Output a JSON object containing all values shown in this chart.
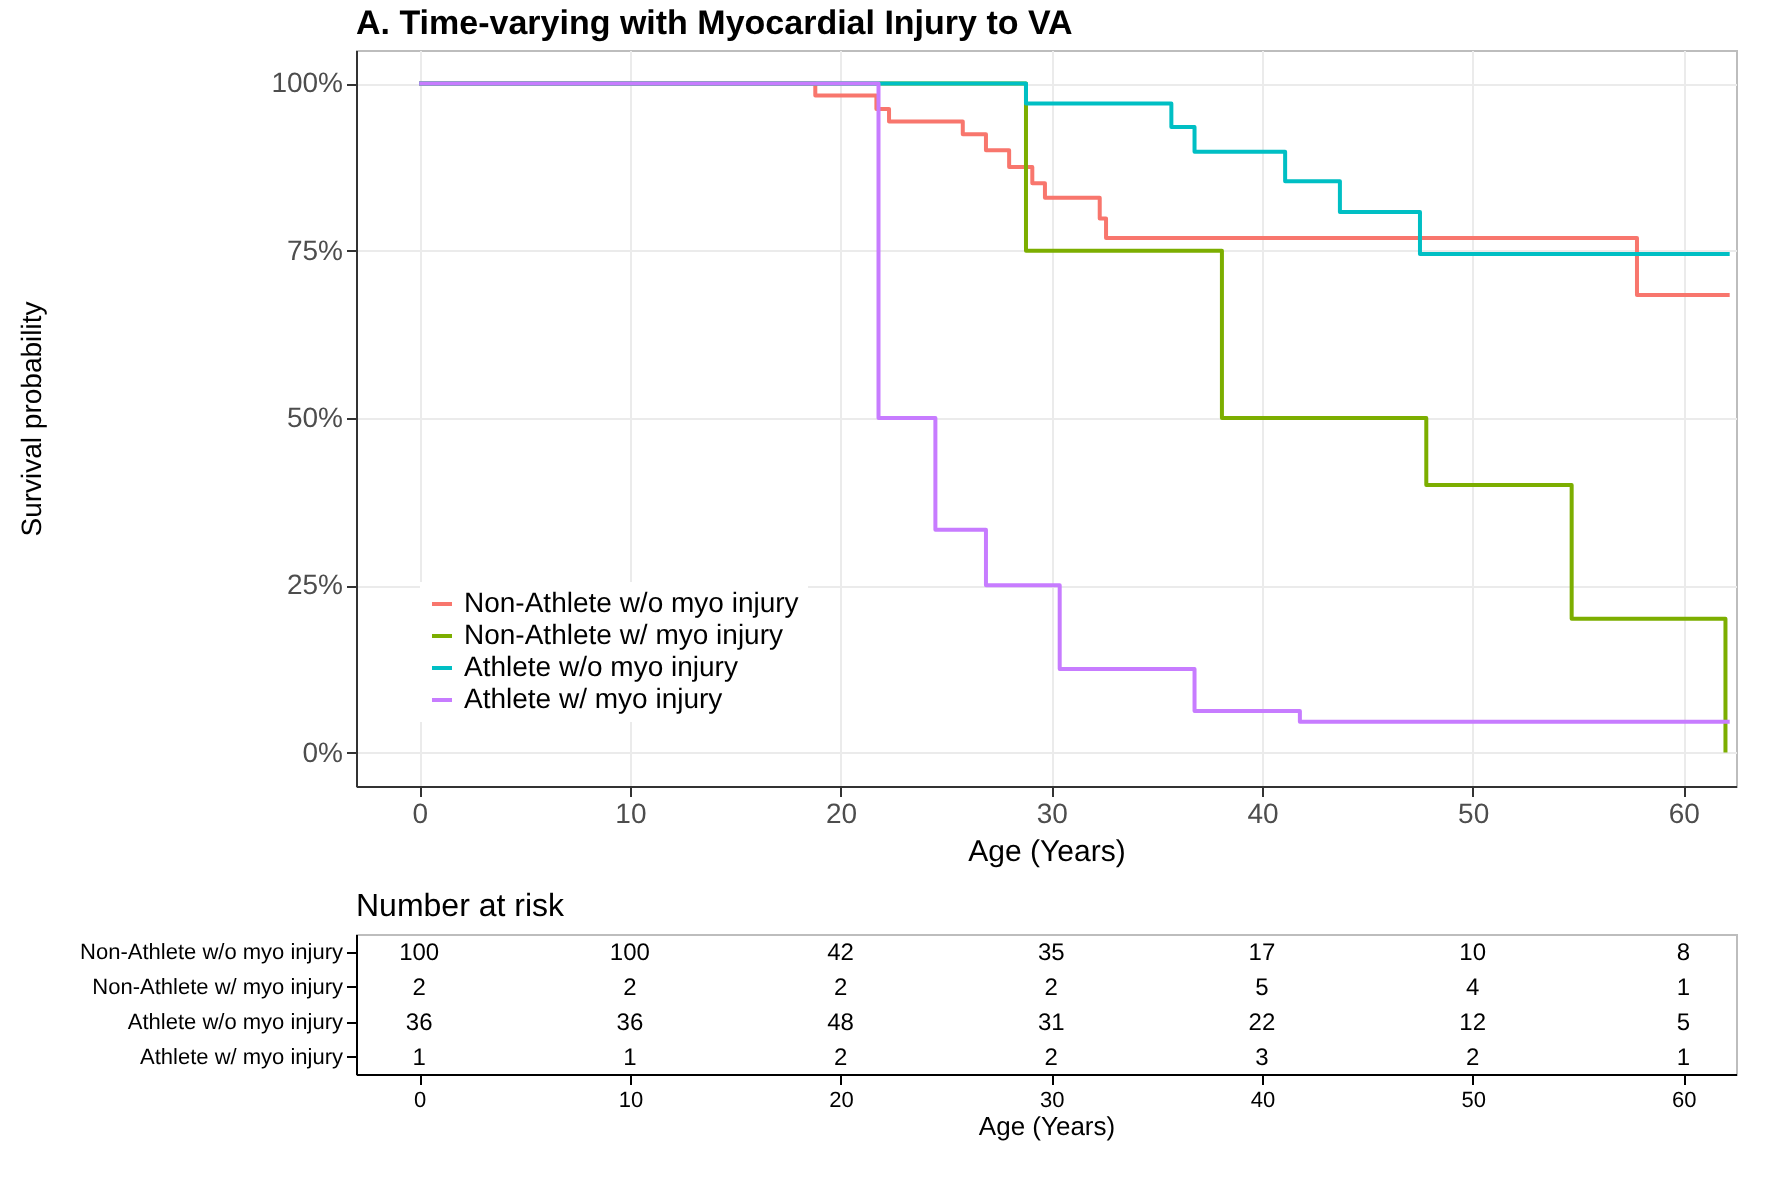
{
  "chart_data": [
    {
      "type": "step",
      "title": "A. Time-varying with Myocardial Injury to VA",
      "xlabel": "Age (Years)",
      "ylabel": "Survival probability",
      "xlim": [
        -3,
        62.5
      ],
      "xticks": [
        0,
        10,
        20,
        30,
        40,
        50,
        60
      ],
      "ylim": [
        -5,
        105
      ],
      "yticks": [
        {
          "value": 0,
          "label": "0%"
        },
        {
          "value": 25,
          "label": "25%"
        },
        {
          "value": 50,
          "label": "50%"
        },
        {
          "value": 75,
          "label": "75%"
        },
        {
          "value": 100,
          "label": "100%"
        }
      ],
      "grid": true,
      "legend": "bottom left",
      "line_style": "solid",
      "series": [
        {
          "name": "Non-Athlete w/o myo injury",
          "color": "#f8766d",
          "x": [
            0,
            18.8,
            21.7,
            22.3,
            25.8,
            26.9,
            28.0,
            29.1,
            29.7,
            32.3,
            32.6,
            57.8,
            62.2
          ],
          "values": [
            100,
            98.2,
            96.2,
            94.3,
            92.4,
            90,
            87.5,
            85.1,
            82.9,
            79.8,
            76.9,
            68.4,
            68.4
          ]
        },
        {
          "name": "Non-Athlete w/ myo injury",
          "color": "#7cae00",
          "x": [
            0,
            28.8,
            38.1,
            47.8,
            54.7,
            62.0
          ],
          "values": [
            100,
            75,
            50,
            40,
            20,
            0
          ]
        },
        {
          "name": "Athlete w/o myo injury",
          "color": "#00bfc4",
          "x": [
            0,
            28.8,
            35.7,
            36.8,
            41.1,
            43.7,
            47.5,
            62.2
          ],
          "values": [
            100,
            97.0,
            93.5,
            89.8,
            85.4,
            80.8,
            74.5,
            74.5
          ]
        },
        {
          "name": "Athlete w/ myo injury",
          "color": "#c77cff",
          "x": [
            0,
            21.8,
            24.5,
            26.9,
            30.4,
            36.8,
            41.8,
            62.2
          ],
          "values": [
            100,
            50,
            33.3,
            25,
            12.5,
            6.2,
            4.6,
            4.6
          ]
        }
      ]
    },
    {
      "type": "heatmap",
      "title": "Number at risk",
      "xlabel": "Age (Years)",
      "x": [
        0,
        10,
        20,
        30,
        40,
        50,
        60
      ],
      "xlim": [
        -3,
        62.5
      ],
      "xticks": [
        0,
        10,
        20,
        30,
        40,
        50,
        60
      ],
      "y_categories": [
        "Non-Athlete w/o myo injury",
        "Non-Athlete w/ myo injury",
        "Athlete w/o myo injury",
        "Athlete w/ myo injury"
      ],
      "data_labels": true,
      "cells": [
        [
          100,
          100,
          42,
          35,
          17,
          10,
          8
        ],
        [
          2,
          2,
          2,
          2,
          5,
          4,
          1
        ],
        [
          36,
          36,
          48,
          31,
          22,
          12,
          5
        ],
        [
          1,
          1,
          2,
          2,
          3,
          2,
          1
        ]
      ]
    }
  ]
}
